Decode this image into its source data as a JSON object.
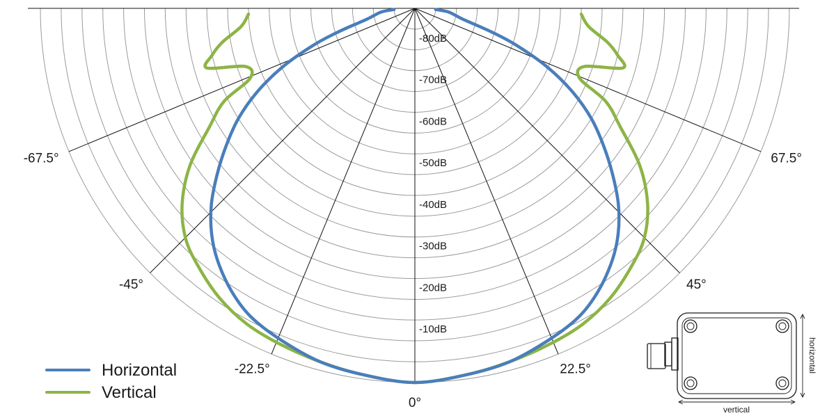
{
  "chart_data": {
    "type": "polar",
    "title": "",
    "radial_axis": {
      "min_db": -90,
      "max_db": 0,
      "ring_step_db": 5,
      "tick_labels": [
        "-80dB",
        "-70dB",
        "-60dB",
        "-50dB",
        "-40dB",
        "-30dB",
        "-20dB",
        "-10dB"
      ],
      "tick_values": [
        -80,
        -70,
        -60,
        -50,
        -40,
        -30,
        -20,
        -10
      ]
    },
    "angular_axis": {
      "range_deg": [
        -90,
        90
      ],
      "zero_direction": "bottom",
      "positive_direction": "right",
      "spokes": [
        -67.5,
        -45,
        -22.5,
        0,
        22.5,
        45,
        67.5
      ],
      "labels": [
        "-67.5°",
        "-45°",
        "-22.5°",
        "0°",
        "22.5°",
        "45°",
        "67.5°"
      ]
    },
    "grid": true,
    "legend_position": "bottom-left",
    "series": [
      {
        "name": "Horizontal",
        "color": "#4a7ebb",
        "points": [
          {
            "theta": -87,
            "db": -85
          },
          {
            "theta": -84,
            "db": -82
          },
          {
            "theta": -80,
            "db": -80
          },
          {
            "theta": -77,
            "db": -78
          },
          {
            "theta": -73,
            "db": -71
          },
          {
            "theta": -70,
            "db": -64
          },
          {
            "theta": -66,
            "db": -55
          },
          {
            "theta": -62,
            "db": -47
          },
          {
            "theta": -58,
            "db": -40
          },
          {
            "theta": -54,
            "db": -34
          },
          {
            "theta": -50,
            "db": -28
          },
          {
            "theta": -46,
            "db": -22
          },
          {
            "theta": -42,
            "db": -17
          },
          {
            "theta": -38,
            "db": -13
          },
          {
            "theta": -33,
            "db": -9
          },
          {
            "theta": -28,
            "db": -6
          },
          {
            "theta": -22,
            "db": -4
          },
          {
            "theta": -15,
            "db": -2
          },
          {
            "theta": -8,
            "db": -1
          },
          {
            "theta": 0,
            "db": 0
          },
          {
            "theta": 8,
            "db": -1
          },
          {
            "theta": 15,
            "db": -2
          },
          {
            "theta": 22,
            "db": -4
          },
          {
            "theta": 28,
            "db": -6
          },
          {
            "theta": 33,
            "db": -9
          },
          {
            "theta": 38,
            "db": -13
          },
          {
            "theta": 42,
            "db": -17
          },
          {
            "theta": 46,
            "db": -22
          },
          {
            "theta": 50,
            "db": -28
          },
          {
            "theta": 54,
            "db": -34
          },
          {
            "theta": 58,
            "db": -40
          },
          {
            "theta": 62,
            "db": -47
          },
          {
            "theta": 66,
            "db": -55
          },
          {
            "theta": 70,
            "db": -64
          },
          {
            "theta": 73,
            "db": -71
          },
          {
            "theta": 77,
            "db": -78
          },
          {
            "theta": 80,
            "db": -80
          },
          {
            "theta": 84,
            "db": -82
          },
          {
            "theta": 87,
            "db": -85
          }
        ]
      },
      {
        "name": "Vertical",
        "color": "#8db446",
        "points": [
          {
            "theta": -88,
            "db": -50
          },
          {
            "theta": -84,
            "db": -48
          },
          {
            "theta": -80,
            "db": -43
          },
          {
            "theta": -77,
            "db": -40
          },
          {
            "theta": -74,
            "db": -38
          },
          {
            "theta": -71,
            "db": -47
          },
          {
            "theta": -67,
            "db": -47
          },
          {
            "theta": -64,
            "db": -39
          },
          {
            "theta": -60,
            "db": -33
          },
          {
            "theta": -55,
            "db": -24
          },
          {
            "theta": -50,
            "db": -17
          },
          {
            "theta": -45,
            "db": -12
          },
          {
            "theta": -40,
            "db": -9
          },
          {
            "theta": -34,
            "db": -6
          },
          {
            "theta": -28,
            "db": -4
          },
          {
            "theta": -22,
            "db": -3
          },
          {
            "theta": -15,
            "db": -2
          },
          {
            "theta": -8,
            "db": -1
          },
          {
            "theta": 0,
            "db": 0
          },
          {
            "theta": 8,
            "db": -1
          },
          {
            "theta": 15,
            "db": -2
          },
          {
            "theta": 22,
            "db": -3
          },
          {
            "theta": 28,
            "db": -4
          },
          {
            "theta": 34,
            "db": -6
          },
          {
            "theta": 40,
            "db": -9
          },
          {
            "theta": 45,
            "db": -12
          },
          {
            "theta": 50,
            "db": -17
          },
          {
            "theta": 55,
            "db": -24
          },
          {
            "theta": 60,
            "db": -33
          },
          {
            "theta": 64,
            "db": -39
          },
          {
            "theta": 67,
            "db": -47
          },
          {
            "theta": 71,
            "db": -47
          },
          {
            "theta": 74,
            "db": -38
          },
          {
            "theta": 77,
            "db": -40
          },
          {
            "theta": 80,
            "db": -43
          },
          {
            "theta": 84,
            "db": -48
          },
          {
            "theta": 88,
            "db": -50
          }
        ]
      }
    ]
  },
  "legend": {
    "items": [
      {
        "label": "Horizontal",
        "color": "#4a7ebb"
      },
      {
        "label": "Vertical",
        "color": "#8db446"
      }
    ]
  },
  "device_diagram": {
    "horizontal_label": "horizontal",
    "vertical_label": "vertical",
    "screw_icon": "screw-icon",
    "connector_icon": "connector-icon"
  }
}
